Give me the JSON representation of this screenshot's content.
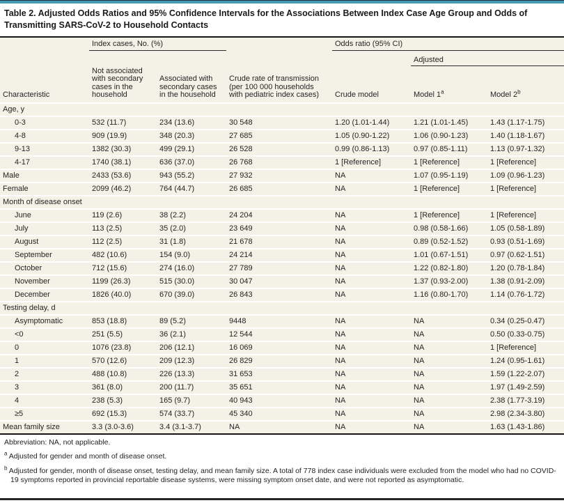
{
  "title": "Table 2. Adjusted Odds Ratios and 95% Confidence Intervals for the Associations Between Index Case Age Group and Odds of Transmitting SARS-CoV-2 to Household Contacts",
  "header": {
    "characteristic": "Characteristic",
    "group_index_cases": "Index cases, No. (%)",
    "group_odds_ratio": "Odds ratio (95% CI)",
    "group_adjusted": "Adjusted",
    "col_not_associated": "Not associated with secondary cases in the household",
    "col_associated": "Associated with secondary cases in the household",
    "col_crude_rate": "Crude rate of transmission (per 100 000 households with pediatric index cases)",
    "col_crude_model": "Crude model",
    "col_model1": "Model 1",
    "col_model1_mark": "a",
    "col_model2": "Model 2",
    "col_model2_mark": "b"
  },
  "table": {
    "rows": [
      {
        "type": "section",
        "label": "Age, y"
      },
      {
        "type": "data",
        "indent": true,
        "label": "0-3",
        "cells": [
          "532 (11.7)",
          "234 (13.6)",
          "30 548",
          "1.20 (1.01-1.44)",
          "1.21 (1.01-1.45)",
          "1.43 (1.17-1.75)"
        ]
      },
      {
        "type": "data",
        "indent": true,
        "label": "4-8",
        "cells": [
          "909 (19.9)",
          "348 (20.3)",
          "27 685",
          "1.05 (0.90-1.22)",
          "1.06 (0.90-1.23)",
          "1.40 (1.18-1.67)"
        ]
      },
      {
        "type": "data",
        "indent": true,
        "label": "9-13",
        "cells": [
          "1382 (30.3)",
          "499 (29.1)",
          "26 528",
          "0.99 (0.86-1.13)",
          "0.97 (0.85-1.11)",
          "1.13 (0.97-1.32)"
        ]
      },
      {
        "type": "data",
        "indent": true,
        "label": "4-17",
        "cells": [
          "1740 (38.1)",
          "636 (37.0)",
          "26 768",
          "1 [Reference]",
          "1 [Reference]",
          "1 [Reference]"
        ]
      },
      {
        "type": "data",
        "indent": false,
        "label": "Male",
        "cells": [
          "2433 (53.6)",
          "943 (55.2)",
          "27 932",
          "NA",
          "1.07 (0.95-1.19)",
          "1.09 (0.96-1.23)"
        ]
      },
      {
        "type": "data",
        "indent": false,
        "label": "Female",
        "cells": [
          "2099 (46.2)",
          "764 (44.7)",
          "26 685",
          "NA",
          "1 [Reference]",
          "1 [Reference]"
        ]
      },
      {
        "type": "section",
        "label": "Month of disease onset"
      },
      {
        "type": "data",
        "indent": true,
        "label": "June",
        "cells": [
          "119 (2.6)",
          "38 (2.2)",
          "24 204",
          "NA",
          "1 [Reference]",
          "1 [Reference]"
        ]
      },
      {
        "type": "data",
        "indent": true,
        "label": "July",
        "cells": [
          "113 (2.5)",
          "35 (2.0)",
          "23 649",
          "NA",
          "0.98 (0.58-1.66)",
          "1.05 (0.58-1.89)"
        ]
      },
      {
        "type": "data",
        "indent": true,
        "label": "August",
        "cells": [
          "112 (2.5)",
          "31 (1.8)",
          "21 678",
          "NA",
          "0.89 (0.52-1.52)",
          "0.93 (0.51-1.69)"
        ]
      },
      {
        "type": "data",
        "indent": true,
        "label": "September",
        "cells": [
          "482 (10.6)",
          "154 (9.0)",
          "24 214",
          "NA",
          "1.01 (0.67-1.51)",
          "0.97 (0.62-1.51)"
        ]
      },
      {
        "type": "data",
        "indent": true,
        "label": "October",
        "cells": [
          "712 (15.6)",
          "274 (16.0)",
          "27 789",
          "NA",
          "1.22 (0.82-1.80)",
          "1.20 (0.78-1.84)"
        ]
      },
      {
        "type": "data",
        "indent": true,
        "label": "November",
        "cells": [
          "1199 (26.3)",
          "515 (30.0)",
          "30 047",
          "NA",
          "1.37 (0.93-2.00)",
          "1.38 (0.91-2.09)"
        ]
      },
      {
        "type": "data",
        "indent": true,
        "label": "December",
        "cells": [
          "1826 (40.0)",
          "670 (39.0)",
          "26 843",
          "NA",
          "1.16 (0.80-1.70)",
          "1.14 (0.76-1.72)"
        ]
      },
      {
        "type": "section",
        "label": "Testing delay, d"
      },
      {
        "type": "data",
        "indent": true,
        "label": "Asymptomatic",
        "cells": [
          "853 (18.8)",
          "89 (5.2)",
          "9448",
          "NA",
          "NA",
          "0.34 (0.25-0.47)"
        ]
      },
      {
        "type": "data",
        "indent": true,
        "label": "<0",
        "cells": [
          "251 (5.5)",
          "36 (2.1)",
          "12 544",
          "NA",
          "NA",
          "0.50 (0.33-0.75)"
        ]
      },
      {
        "type": "data",
        "indent": true,
        "label": "0",
        "cells": [
          "1076 (23.8)",
          "206 (12.1)",
          "16 069",
          "NA",
          "NA",
          "1 [Reference]"
        ]
      },
      {
        "type": "data",
        "indent": true,
        "label": "1",
        "cells": [
          "570 (12.6)",
          "209 (12.3)",
          "26 829",
          "NA",
          "NA",
          "1.24 (0.95-1.61)"
        ]
      },
      {
        "type": "data",
        "indent": true,
        "label": "2",
        "cells": [
          "488 (10.8)",
          "226 (13.3)",
          "31 653",
          "NA",
          "NA",
          "1.59 (1.22-2.07)"
        ]
      },
      {
        "type": "data",
        "indent": true,
        "label": "3",
        "cells": [
          "361 (8.0)",
          "200 (11.7)",
          "35 651",
          "NA",
          "NA",
          "1.97 (1.49-2.59)"
        ]
      },
      {
        "type": "data",
        "indent": true,
        "label": "4",
        "cells": [
          "238 (5.3)",
          "165 (9.7)",
          "40 943",
          "NA",
          "NA",
          "2.38 (1.77-3.19)"
        ]
      },
      {
        "type": "data",
        "indent": true,
        "label": "≥5",
        "cells": [
          "692 (15.3)",
          "574 (33.7)",
          "45 340",
          "NA",
          "NA",
          "2.98 (2.34-3.80)"
        ]
      },
      {
        "type": "data",
        "indent": false,
        "label": "Mean family size",
        "cells": [
          "3.3 (3.0-3.6)",
          "3.4 (3.1-3.7)",
          "NA",
          "NA",
          "NA",
          "1.63 (1.43-1.86)"
        ]
      }
    ]
  },
  "footnotes": {
    "abbreviation": "Abbreviation: NA, not applicable.",
    "a_mark": "a",
    "a_text": "Adjusted for gender and month of disease onset.",
    "b_mark": "b",
    "b_text": "Adjusted for gender, month of disease onset, testing delay, and mean family size. A total of 778 index case individuals were excluded from the model who had no COVID-19 symptoms reported in provincial reportable disease systems, were missing symptom onset date, and were not reported as asymptomatic."
  },
  "colors": {
    "accent_teal": "#4899b4",
    "accent_dark": "#22343d",
    "table_background": "#f4f2e7",
    "rule_dark": "#151515",
    "row_separator": "#ffffff",
    "text": "#222222"
  }
}
